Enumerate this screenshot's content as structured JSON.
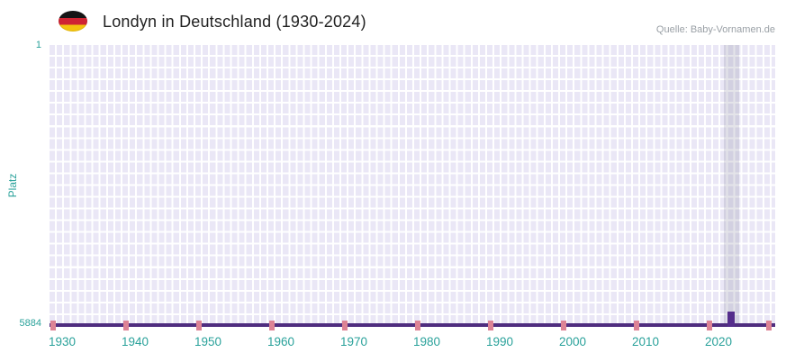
{
  "header": {
    "title": "Londyn in Deutschland (1930-2024)",
    "source": "Quelle: Baby-Vornamen.de",
    "flag_icon": "german-flag"
  },
  "chart_data": {
    "type": "bar",
    "title": "Londyn in Deutschland (1930-2024)",
    "name": "Londyn",
    "ylabel": "Platz",
    "y_axis": {
      "top_tick": "1",
      "bottom_tick": "5884",
      "min": 1,
      "max": 5884,
      "inverted": true
    },
    "x_axis": {
      "ticks": [
        "1930",
        "1940",
        "1950",
        "1960",
        "1970",
        "1980",
        "1990",
        "2000",
        "2010",
        "2020"
      ],
      "range_start": 1930,
      "range_end": 2024
    },
    "series": [
      {
        "name": "Londyn",
        "points": [
          {
            "year": 2023,
            "rank": 5640
          }
        ]
      }
    ],
    "highlight_year": 2023,
    "bottom_mark_years": [
      1930,
      1940,
      1950,
      1960,
      1970,
      1980,
      1990,
      2000,
      2010,
      2020
    ],
    "right_edge_mark": true,
    "grid": true,
    "legend_position": "none",
    "colors": {
      "bar": "#552d8c",
      "baseline": "#4f2d7f",
      "grid_cell": "#eae7f6",
      "axis_text": "#2ba29b",
      "mark": "#dd8395",
      "highlight_band": "#cfccdb"
    }
  }
}
